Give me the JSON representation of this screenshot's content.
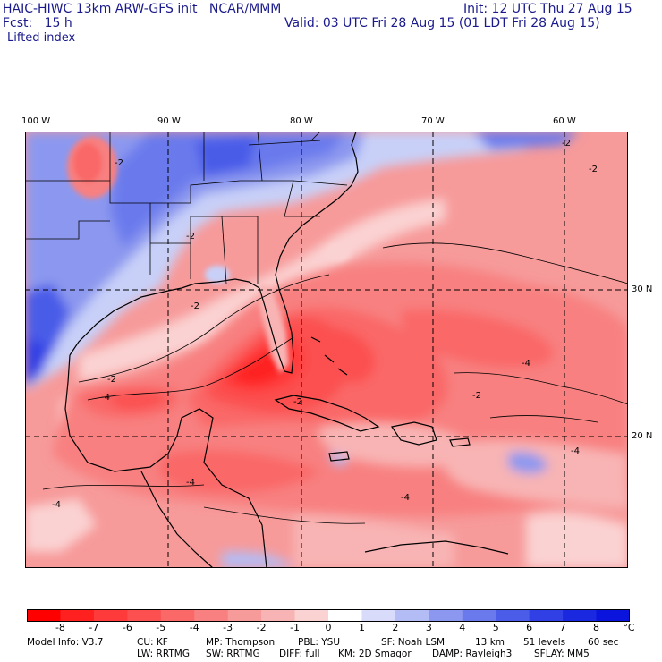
{
  "header": {
    "model_line": "HAIC-HIWC 13km ARW-GFS init   NCAR/MMM",
    "init_line": "Init: 12 UTC Thu 27 Aug 15",
    "fcst_line": "Fcst:   15 h",
    "valid_line": "Valid: 03 UTC Fri 28 Aug 15 (01 LDT Fri 28 Aug 15)",
    "field_name": "Lifted index"
  },
  "map": {
    "lon_labels": [
      "100 W",
      "90 W",
      "80 W",
      "70 W",
      "60 W"
    ],
    "lat_labels": [
      "30 N",
      "20 N"
    ],
    "contour_labels": [
      "-2",
      "-2",
      "-2",
      "-2",
      "-2",
      "-2",
      "-2",
      "-2",
      "-4",
      "-4",
      "-4",
      "-4",
      "-4",
      "-4"
    ],
    "colors": {
      "negative_strong": "#ff1a1a",
      "negative_mid": "#f86a6a",
      "negative_weak": "#fbc2c2",
      "neutral": "#ffffff",
      "positive_weak": "#c8d0f8",
      "positive_mid": "#6a7ef0",
      "positive_strong": "#1e2fe0"
    }
  },
  "colorbar": {
    "ticks": [
      "-8",
      "-7",
      "-6",
      "-5",
      "-4",
      "-3",
      "-2",
      "-1",
      "0",
      "1",
      "2",
      "3",
      "4",
      "5",
      "6",
      "7",
      "8"
    ],
    "unit": "°C",
    "colors": [
      "#ff0000",
      "#ff2020",
      "#ff3a3a",
      "#fc5050",
      "#fa6868",
      "#f88080",
      "#f79a9a",
      "#f8b4b4",
      "#fbd2d2",
      "#ffffff",
      "#d8dcfa",
      "#b4bcf5",
      "#8c98ef",
      "#6a7aec",
      "#4a5ce8",
      "#3040e4",
      "#1a28e0",
      "#0a14dc"
    ]
  },
  "footer": {
    "line1": [
      "Model Info: V3.7",
      "CU: KF",
      "MP: Thompson",
      "PBL: YSU",
      "SF: Noah LSM",
      "13 km",
      "51 levels",
      "60 sec"
    ],
    "line2": [
      "LW: RRTMG",
      "SW: RRTMG",
      "DIFF: full",
      "KM: 2D Smagor",
      "DAMP: Rayleigh3",
      "SFLAY: MM5"
    ]
  }
}
